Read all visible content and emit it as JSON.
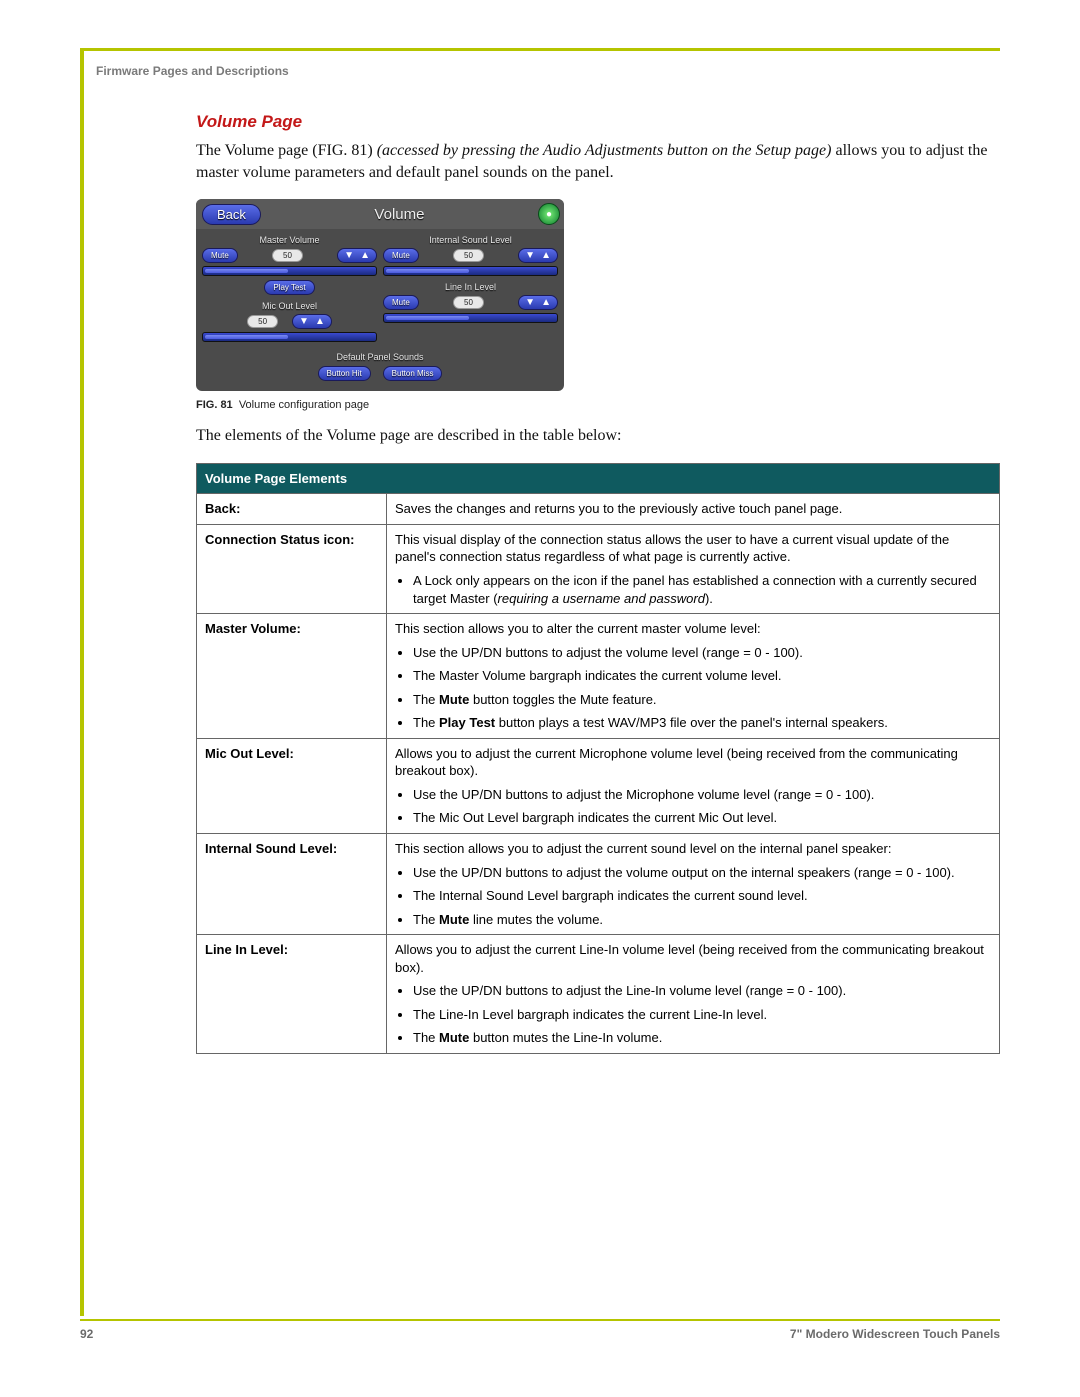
{
  "colors": {
    "accent": "#b5c400",
    "section_title": "#c31818",
    "table_header_bg": "#0f5a5f",
    "body_text": "#111111",
    "breadcrumb": "#7a7a7a",
    "panel_bg": "#4b4b4b",
    "button_gradient_top": "#5a6de8",
    "button_gradient_bottom": "#2a3ab0"
  },
  "typography": {
    "body_font": "Georgia",
    "ui_font": "Arial",
    "section_title_size_pt": 13,
    "body_text_size_pt": 12,
    "table_text_size_pt": 10,
    "caption_size_pt": 8
  },
  "breadcrumb": "Firmware Pages and Descriptions",
  "section": {
    "title": "Volume Page",
    "intro_plain_1": "The Volume page (FIG. 81) ",
    "intro_italic": "(accessed by pressing the Audio Adjustments button on the Setup page)",
    "intro_plain_2": " allows you to adjust the master volume parameters and default panel sounds on the panel.",
    "after_fig": "The elements of the Volume page are described in the table below:"
  },
  "figure": {
    "caption_prefix": "FIG. 81",
    "caption_text": "Volume configuration page",
    "panel": {
      "back_label": "Back",
      "title": "Volume",
      "left": {
        "master_volume": {
          "label": "Master Volume",
          "mute": "Mute",
          "value": "50"
        },
        "play_test": "Play Test",
        "mic_out": {
          "label": "Mic Out Level",
          "value": "50"
        }
      },
      "right": {
        "internal_sound": {
          "label": "Internal Sound Level",
          "mute": "Mute",
          "value": "50"
        },
        "line_in": {
          "label": "Line In Level",
          "mute": "Mute",
          "value": "50"
        }
      },
      "bottom": {
        "label": "Default Panel Sounds",
        "btn_hit": "Button Hit",
        "btn_miss": "Button Miss"
      }
    }
  },
  "table": {
    "header": "Volume Page Elements",
    "rows": [
      {
        "label": "Back:",
        "text": "Saves the changes and returns you to the previously active touch panel page."
      },
      {
        "label": "Connection Status icon:",
        "text": "This visual display of the connection status allows the user to have a current visual update of the panel's connection status regardless of what page is currently active.",
        "bullets": [
          {
            "pre": "A Lock only appears on the icon if the panel has established a connection with a currently secured target Master (",
            "ital": "requiring a username and password",
            "post": ")."
          }
        ]
      },
      {
        "label": "Master Volume:",
        "text": "This section allows you to alter the current master volume level:",
        "bullets": [
          {
            "pre": "Use the UP/DN buttons to adjust the volume level (range = 0 - 100)."
          },
          {
            "pre": "The Master Volume bargraph indicates the current volume level."
          },
          {
            "pre": "The ",
            "bold": "Mute",
            "post": " button toggles the Mute feature."
          },
          {
            "pre": "The ",
            "bold": "Play Test",
            "post": " button plays a test WAV/MP3 file over the panel's internal speakers."
          }
        ]
      },
      {
        "label": "Mic Out Level:",
        "text": "Allows you to adjust the current Microphone volume level (being received from the communicating breakout box).",
        "bullets": [
          {
            "pre": "Use the UP/DN buttons to adjust the Microphone volume level (range = 0 - 100)."
          },
          {
            "pre": "The Mic Out Level bargraph indicates the current Mic Out level."
          }
        ]
      },
      {
        "label": "Internal Sound Level:",
        "text": "This section allows you to adjust the current sound level on the internal panel speaker:",
        "bullets": [
          {
            "pre": "Use the UP/DN buttons to adjust the volume output on the internal speakers (range = 0 - 100)."
          },
          {
            "pre": "The Internal Sound Level bargraph indicates the current sound level."
          },
          {
            "pre": "The ",
            "bold": "Mute",
            "post": " line mutes the volume."
          }
        ]
      },
      {
        "label": "Line In Level:",
        "text": "Allows you to adjust the current Line-In volume level (being received from the communicating breakout box).",
        "bullets": [
          {
            "pre": "Use the UP/DN buttons to adjust the Line-In volume level (range = 0 - 100)."
          },
          {
            "pre": "The Line-In Level bargraph indicates the current Line-In level."
          },
          {
            "pre": "The ",
            "bold": "Mute",
            "post": " button mutes the Line-In volume."
          }
        ]
      }
    ]
  },
  "footer": {
    "page_number": "92",
    "doc_title": "7\" Modero Widescreen Touch Panels"
  }
}
